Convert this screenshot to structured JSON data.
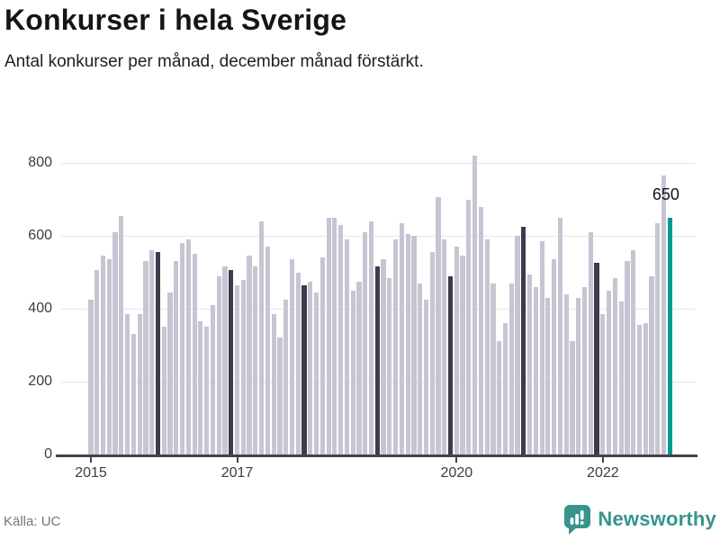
{
  "header": {
    "title": "Konkurser i hela Sverige",
    "subtitle": "Antal konkurser per månad, december månad förstärkt."
  },
  "footer": {
    "source": "Källa: UC",
    "brand": "Newsworthy"
  },
  "colors": {
    "bar": "#c7c5d2",
    "bar_december": "#3e3b4e",
    "bar_latest": "#009a91",
    "gridline": "#e6e6ea",
    "axis": "#42424e",
    "brand_teal": "#37948c"
  },
  "chart_data": {
    "type": "bar",
    "title": "Konkurser i hela Sverige",
    "subtitle": "Antal konkurser per månad, december månad förstärkt.",
    "ylim": [
      0,
      840
    ],
    "y_ticks": [
      0,
      200,
      400,
      600,
      800
    ],
    "x_ticks": [
      {
        "label": "2015",
        "month_index": 0
      },
      {
        "label": "2017",
        "month_index": 24
      },
      {
        "label": "2020",
        "month_index": 60
      },
      {
        "label": "2022",
        "month_index": 84
      }
    ],
    "grid": "horizontal",
    "highlight_rule": "december-bars-dark, latest-bar-teal",
    "series": [
      {
        "year": 2015,
        "values": [
          425,
          505,
          545,
          535,
          610,
          655,
          385,
          330,
          385,
          530,
          560,
          555
        ]
      },
      {
        "year": 2016,
        "values": [
          350,
          445,
          530,
          580,
          590,
          550,
          365,
          350,
          410,
          490,
          515,
          505
        ]
      },
      {
        "year": 2017,
        "values": [
          465,
          480,
          545,
          515,
          640,
          570,
          385,
          320,
          425,
          535,
          500,
          465
        ]
      },
      {
        "year": 2018,
        "values": [
          475,
          445,
          540,
          650,
          650,
          630,
          590,
          450,
          475,
          610,
          640,
          515
        ]
      },
      {
        "year": 2019,
        "values": [
          535,
          485,
          590,
          635,
          605,
          600,
          470,
          425,
          555,
          705,
          590,
          490
        ]
      },
      {
        "year": 2020,
        "values": [
          570,
          545,
          700,
          820,
          680,
          590,
          470,
          310,
          360,
          470,
          600,
          625
        ]
      },
      {
        "year": 2021,
        "values": [
          495,
          460,
          585,
          430,
          535,
          650,
          440,
          310,
          430,
          460,
          610,
          525
        ]
      },
      {
        "year": 2022,
        "values": [
          385,
          450,
          485,
          420,
          530,
          560,
          355,
          360,
          490,
          635,
          765,
          650
        ]
      }
    ],
    "annotation": {
      "month": "2022-12",
      "value": 650,
      "label": "650"
    }
  }
}
